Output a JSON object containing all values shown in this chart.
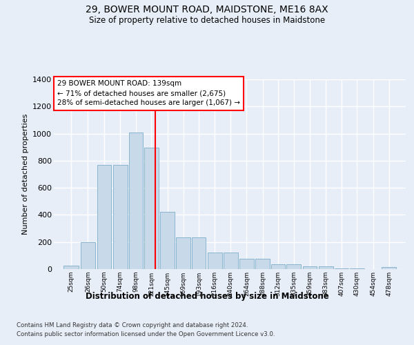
{
  "title1": "29, BOWER MOUNT ROAD, MAIDSTONE, ME16 8AX",
  "title2": "Size of property relative to detached houses in Maidstone",
  "xlabel": "Distribution of detached houses by size in Maidstone",
  "ylabel": "Number of detached properties",
  "categories": [
    "25sqm",
    "26sqm",
    "50sqm",
    "74sqm",
    "98sqm",
    "121sqm",
    "145sqm",
    "169sqm",
    "193sqm",
    "216sqm",
    "240sqm",
    "264sqm",
    "288sqm",
    "312sqm",
    "335sqm",
    "359sqm",
    "383sqm",
    "407sqm",
    "430sqm",
    "454sqm",
    "478sqm"
  ],
  "annotation_box_text": "29 BOWER MOUNT ROAD: 139sqm\n← 71% of detached houses are smaller (2,675)\n28% of semi-detached houses are larger (1,067) →",
  "footer1": "Contains HM Land Registry data © Crown copyright and database right 2024.",
  "footer2": "Contains public sector information licensed under the Open Government Licence v3.0.",
  "bar_color": "#c8d9ea",
  "bar_edge_color": "#7aaec8",
  "bg_color": "#e8eef8",
  "plot_bg_color": "#e8eef8",
  "ylim": [
    0,
    1400
  ],
  "yticks": [
    0,
    200,
    400,
    600,
    800,
    1000,
    1200,
    1400
  ],
  "bin_edges": [
    0,
    25,
    50,
    74,
    98,
    121,
    145,
    169,
    193,
    216,
    240,
    264,
    288,
    312,
    335,
    359,
    383,
    407,
    430,
    454,
    478,
    502
  ],
  "bar_values": [
    25,
    200,
    770,
    770,
    1010,
    895,
    425,
    235,
    235,
    120,
    120,
    75,
    75,
    35,
    35,
    20,
    20,
    7,
    7,
    0,
    14
  ],
  "vline_x": 139
}
